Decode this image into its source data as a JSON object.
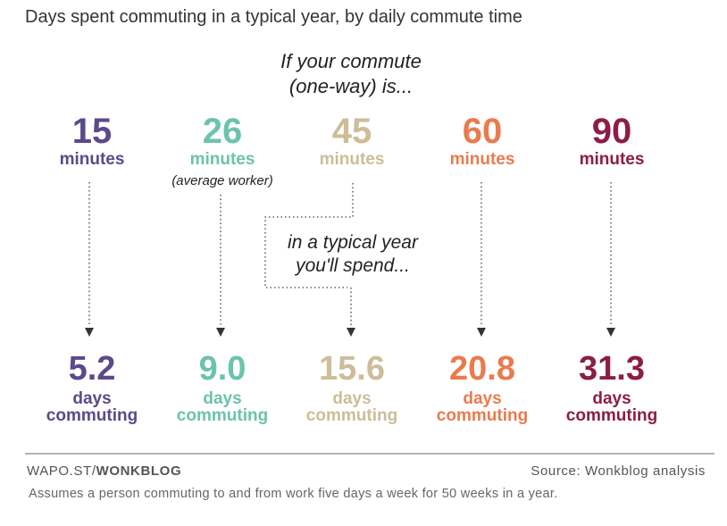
{
  "chart_data": {
    "type": "table",
    "title": "Days spent commuting in a typical year, by daily commute time",
    "intro_line1": "If your commute",
    "intro_line2": "(one-way) is...",
    "middle_line1": "in a typical year",
    "middle_line2": "you'll spend...",
    "commute_unit": "minutes",
    "result_unit_line1": "days",
    "result_unit_line2": "commuting",
    "items": [
      {
        "minutes": "15",
        "note": "",
        "days": "5.2",
        "color": "#5b4a8b"
      },
      {
        "minutes": "26",
        "note": "(average worker)",
        "days": "9.0",
        "color": "#6cc3ad"
      },
      {
        "minutes": "45",
        "note": "",
        "days": "15.6",
        "color": "#cdbd98"
      },
      {
        "minutes": "60",
        "note": "",
        "days": "20.8",
        "color": "#ea7b4e"
      },
      {
        "minutes": "90",
        "note": "",
        "days": "31.3",
        "color": "#8c1d46"
      }
    ]
  },
  "footer": {
    "site_prefix": "WAPO.ST/",
    "site_bold": "WONKBLOG",
    "source": "Source: Wonkblog analysis",
    "footnote": "Assumes a person commuting to and from work five days a week for 50 weeks in a year."
  }
}
